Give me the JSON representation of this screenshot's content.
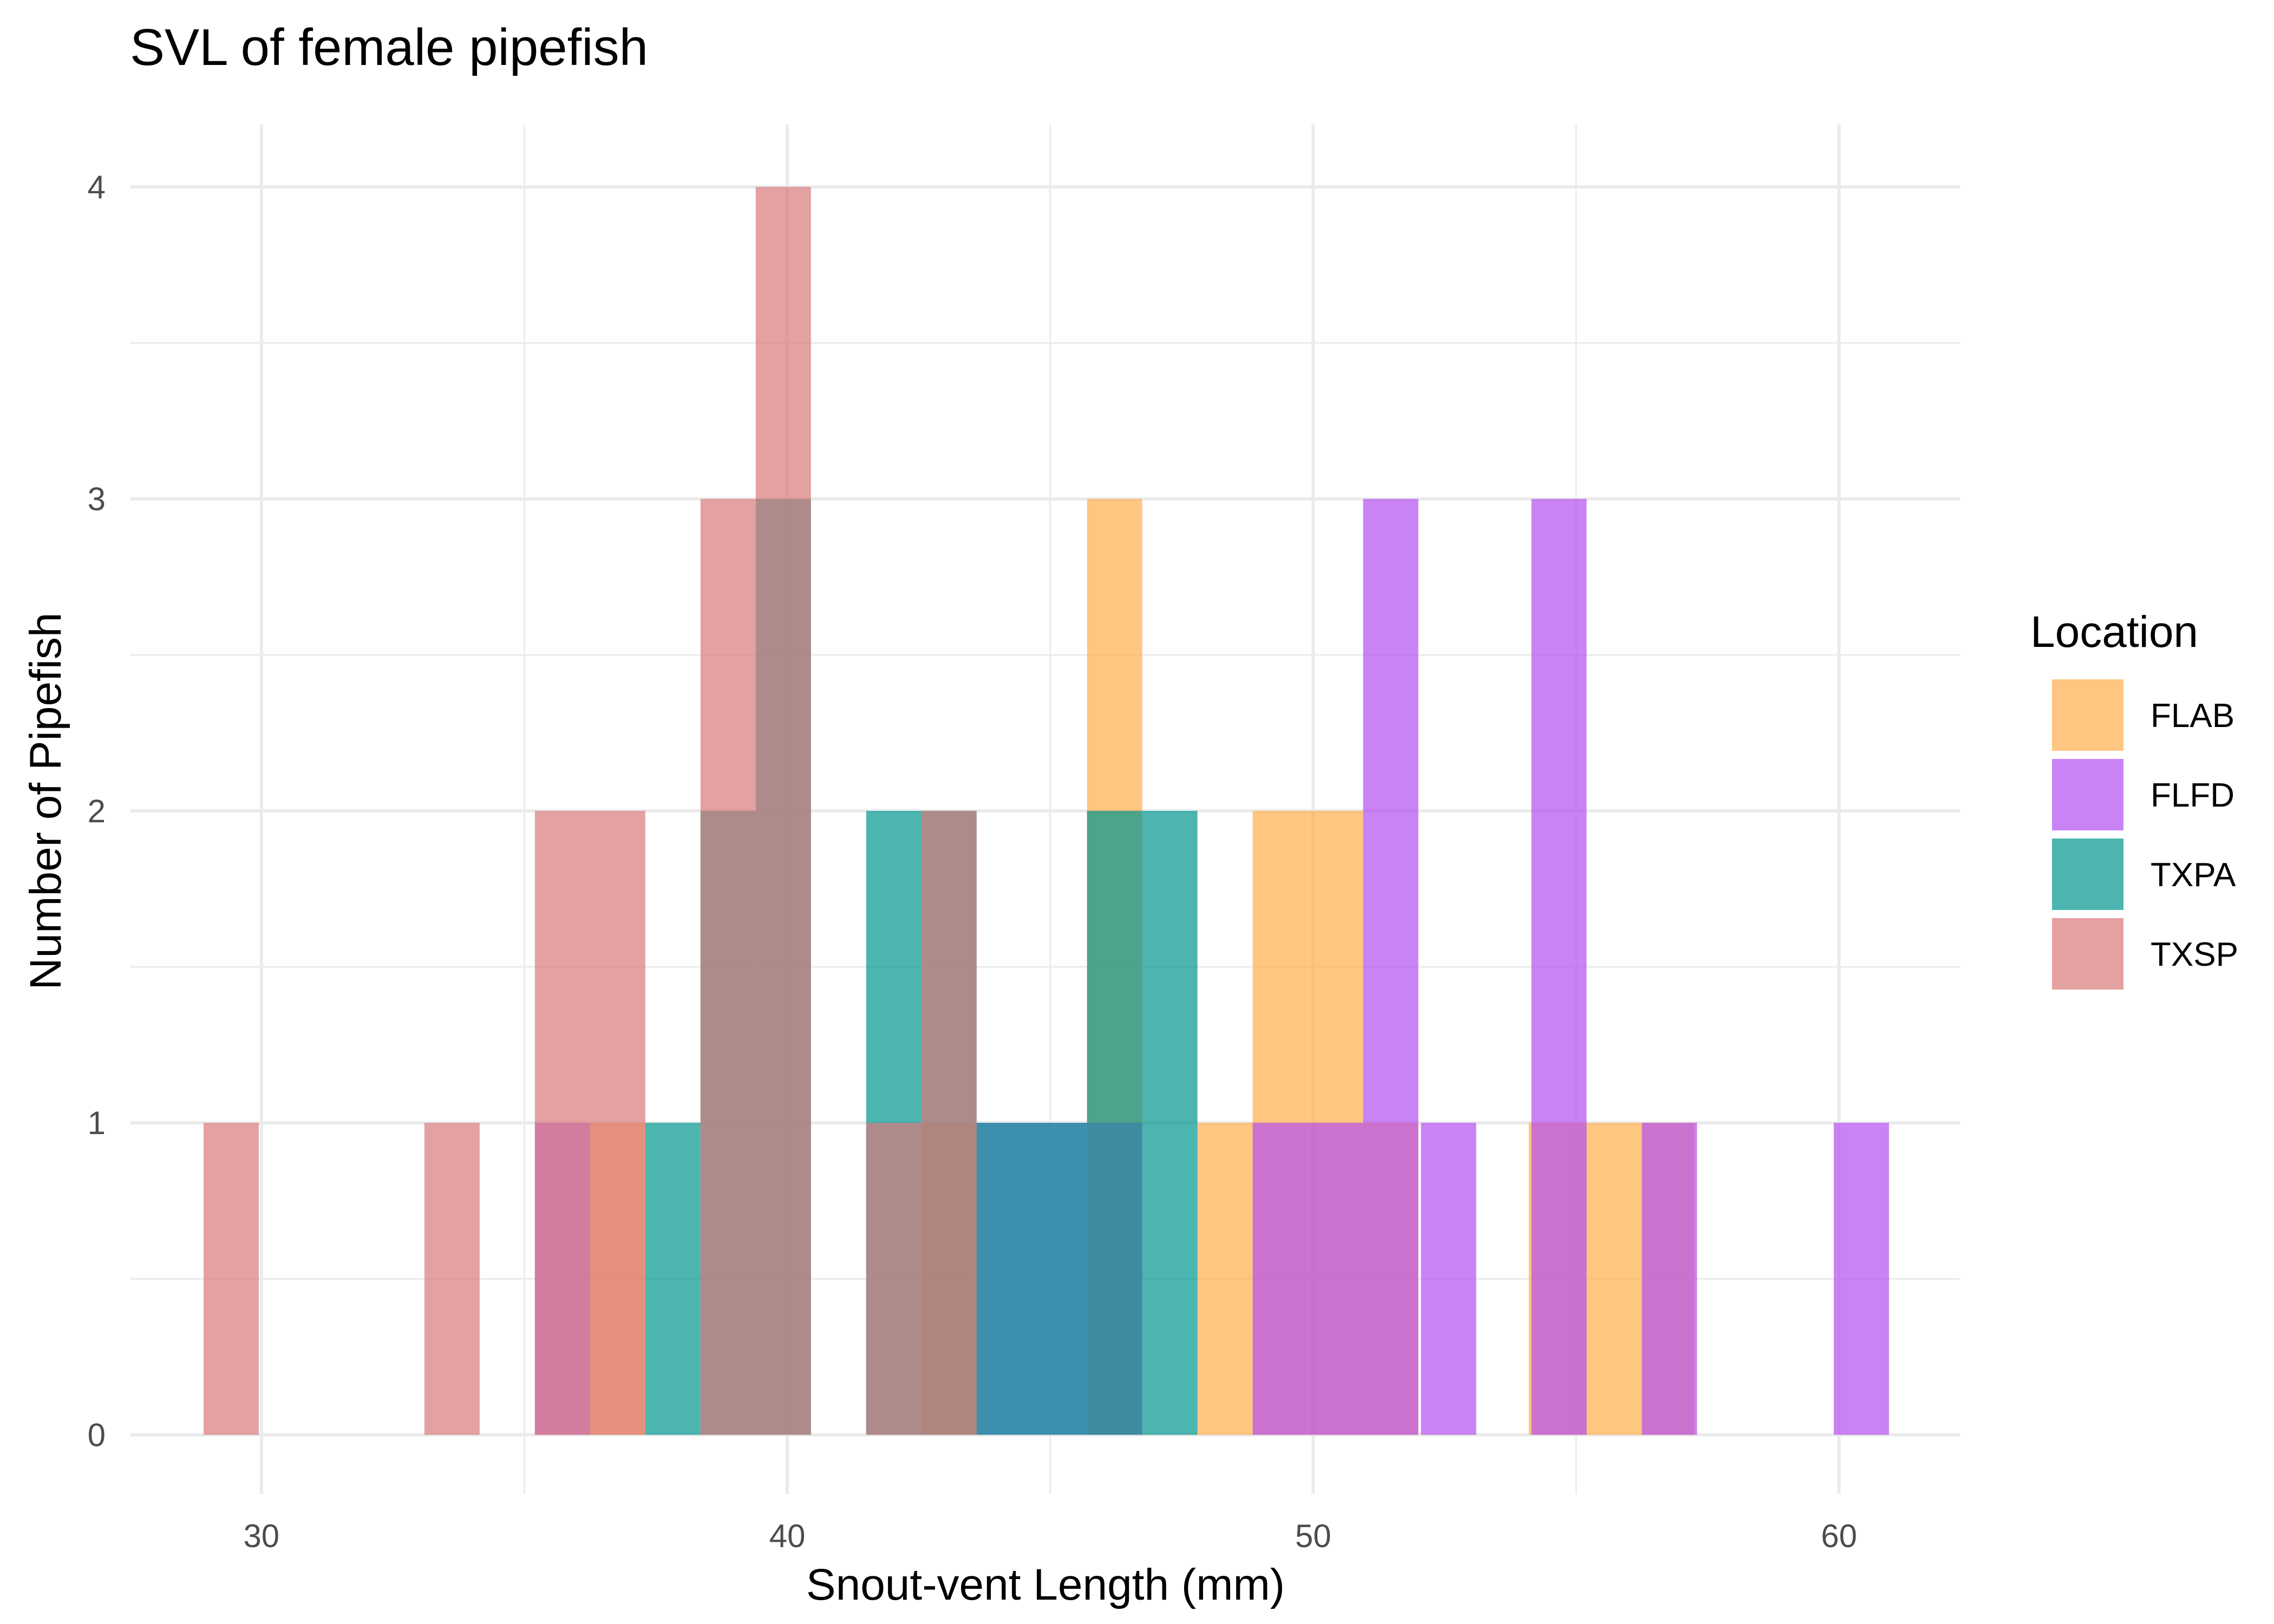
{
  "chart_data": {
    "type": "bar",
    "subtype": "overlapping histogram",
    "title": "SVL of female pipefish",
    "xlabel": "Snout-vent Length (mm)",
    "ylabel": "Number of Pipefish",
    "xlim": [
      27.5,
      62.3
    ],
    "ylim": [
      -0.19,
      4.2
    ],
    "xticks": [
      30,
      40,
      50,
      60
    ],
    "yticks": [
      0,
      1,
      2,
      3,
      4
    ],
    "grid": true,
    "legend_title": "Location",
    "legend_position": "right",
    "bin_width": 1.05,
    "bin_origin": 28.9,
    "series": [
      {
        "name": "FLAB",
        "color": "#fdae4b",
        "bin_lefts": [
          36.25,
          42.55,
          45.7,
          47.8,
          48.85,
          49.9,
          50.95,
          54.1,
          55.15,
          56.2
        ],
        "counts": [
          1,
          1,
          3,
          1,
          2,
          2,
          1,
          1,
          1,
          1
        ]
      },
      {
        "name": "FLFD",
        "color": "#b44fef",
        "bin_lefts": [
          35.2,
          43.6,
          44.65,
          45.7,
          48.85,
          49.9,
          50.95,
          51.0,
          52.05,
          54.15,
          55.2,
          56.25,
          59.9
        ],
        "counts": [
          1,
          1,
          1,
          1,
          1,
          1,
          3,
          0,
          1,
          3,
          0,
          1,
          1
        ]
      },
      {
        "name": "TXPA",
        "color": "#00968f",
        "bin_lefts": [
          37.3,
          38.35,
          39.4,
          41.5,
          42.55,
          43.6,
          44.65,
          45.7,
          46.75
        ],
        "counts": [
          1,
          2,
          3,
          2,
          2,
          1,
          1,
          2,
          2
        ]
      },
      {
        "name": "TXSP",
        "color": "#d9797a",
        "bin_lefts": [
          28.9,
          33.1,
          35.2,
          36.25,
          38.35,
          39.4,
          41.5,
          42.55
        ],
        "counts": [
          1,
          1,
          2,
          2,
          3,
          4,
          1,
          2
        ]
      }
    ]
  }
}
